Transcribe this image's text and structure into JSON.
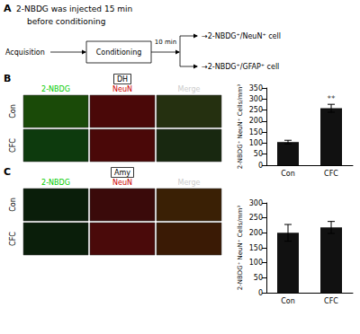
{
  "chart_data": [
    {
      "type": "schematic",
      "title": "A",
      "annotations": [
        "2-NBDG was injected 15 min",
        "before conditioning",
        "Acquisition",
        "Conditioning",
        "10 min",
        "→2-NBDG⁺/NeuN⁺ cell",
        "→2-NBDG⁺/GFAP⁺ cell"
      ]
    },
    {
      "type": "bar",
      "title": "B",
      "subtitle": "DH",
      "image_columns": [
        {
          "label": "2-NBDG",
          "color": "#00cc00"
        },
        {
          "label": "NeuN",
          "color": "#cc0000"
        },
        {
          "label": "Merge",
          "color": "#cccccc"
        }
      ],
      "image_rows": [
        {
          "label": "Con",
          "colors": [
            "#1a4a08",
            "#4a0808",
            "#253010"
          ]
        },
        {
          "label": "CFC",
          "colors": [
            "#0d3a0d",
            "#4a0808",
            "#182810"
          ]
        }
      ],
      "categories": [
        "Con",
        "CFC"
      ],
      "values": [
        105,
        258
      ],
      "errors": [
        8,
        18
      ],
      "color": "#111111",
      "ylabel": "2-NBDG⁺ NeuN⁺ Cells/mm³",
      "ylim": [
        0,
        350
      ],
      "yticks": [
        0,
        50,
        100,
        150,
        200,
        250,
        300,
        350
      ],
      "grid": false,
      "annotations": [
        {
          "text": "**",
          "x": "CFC",
          "y": 282
        }
      ]
    },
    {
      "type": "bar",
      "title": "C",
      "subtitle": "Amy",
      "image_columns": [
        {
          "label": "2-NBDG",
          "color": "#00cc00"
        },
        {
          "label": "NeuN",
          "color": "#cc0000"
        },
        {
          "label": "Merge",
          "color": "#cccccc"
        }
      ],
      "image_rows": [
        {
          "label": "Con",
          "colors": [
            "#0a1e0a",
            "#3a0a0a",
            "#3a2005"
          ]
        },
        {
          "label": "CFC",
          "colors": [
            "#0a1e0a",
            "#4a0a0a",
            "#3a1a05"
          ]
        }
      ],
      "categories": [
        "Con",
        "CFC"
      ],
      "values": [
        200,
        218
      ],
      "errors": [
        28,
        20
      ],
      "color": "#111111",
      "ylabel": "2-NBDG⁺ NeuN⁺ Cells/mm³",
      "ylim": [
        0,
        300
      ],
      "yticks": [
        0,
        50,
        100,
        150,
        200,
        250,
        300
      ],
      "grid": false
    }
  ]
}
